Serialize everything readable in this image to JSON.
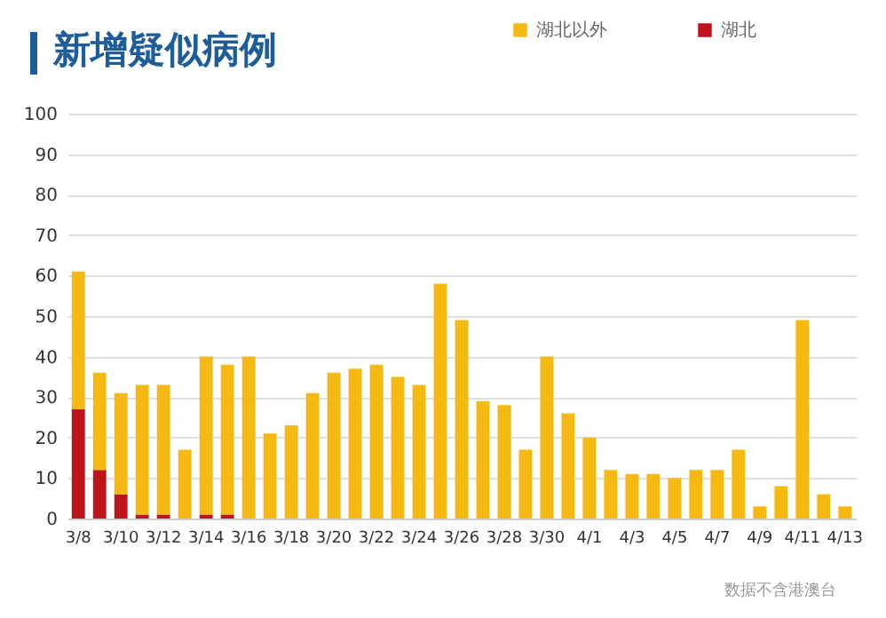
{
  "chart_data": {
    "type": "bar",
    "title": "新增疑似病例",
    "stacked": true,
    "categories": [
      "3/8",
      null,
      "3/10",
      null,
      "3/12",
      null,
      "3/14",
      null,
      "3/16",
      null,
      "3/18",
      null,
      "3/20",
      null,
      "3/22",
      null,
      "3/24",
      null,
      "3/26",
      null,
      "3/28",
      null,
      "3/30",
      null,
      "4/1",
      null,
      "4/3",
      null,
      "4/5",
      null,
      "4/7",
      null,
      "4/9",
      null,
      "4/11",
      null,
      "4/13"
    ],
    "series": [
      {
        "name": "湖北",
        "color": "#c0141b",
        "values": [
          27,
          12,
          6,
          1,
          1,
          null,
          1,
          1,
          null,
          null,
          null,
          null,
          null,
          null,
          null,
          null,
          null,
          null,
          null,
          null,
          null,
          null,
          null,
          null,
          null,
          null,
          null,
          null,
          null,
          null,
          null,
          null,
          null,
          null,
          null,
          null,
          null
        ]
      },
      {
        "name": "湖北以外",
        "color": "#f6b911",
        "values": [
          34,
          24,
          25,
          32,
          32,
          17,
          39,
          37,
          40,
          21,
          23,
          31,
          36,
          37,
          38,
          35,
          33,
          58,
          49,
          29,
          28,
          17,
          40,
          26,
          20,
          12,
          11,
          11,
          10,
          12,
          12,
          17,
          3,
          8,
          49,
          6,
          3
        ]
      }
    ],
    "ylim": [
      0,
      100
    ],
    "yticks": [
      0,
      10,
      20,
      30,
      40,
      50,
      60,
      70,
      80,
      90,
      100
    ],
    "grid": "y",
    "legend": "top right",
    "annotations": [
      "数据不含港澳台"
    ]
  }
}
